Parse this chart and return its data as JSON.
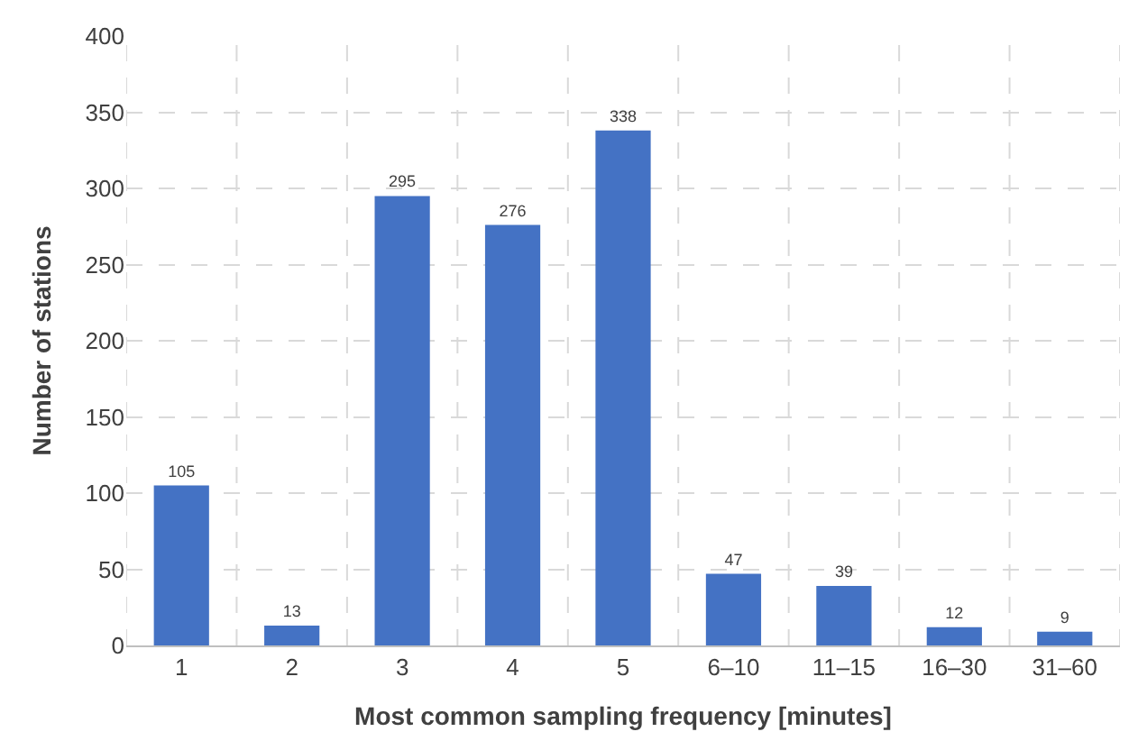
{
  "chart_data": {
    "type": "bar",
    "xlabel": "Most common sampling frequency [minutes]",
    "ylabel": "Number of stations",
    "categories": [
      "1",
      "2",
      "3",
      "4",
      "5",
      "6–10",
      "11–15",
      "16–30",
      "31–60"
    ],
    "values": [
      105,
      13,
      295,
      276,
      338,
      47,
      39,
      12,
      9
    ],
    "color": "#4472c4",
    "ylim": [
      0,
      400
    ],
    "yticks": [
      0,
      50,
      100,
      150,
      200,
      250,
      300,
      350,
      400
    ],
    "grid": true,
    "data_labels": true
  }
}
